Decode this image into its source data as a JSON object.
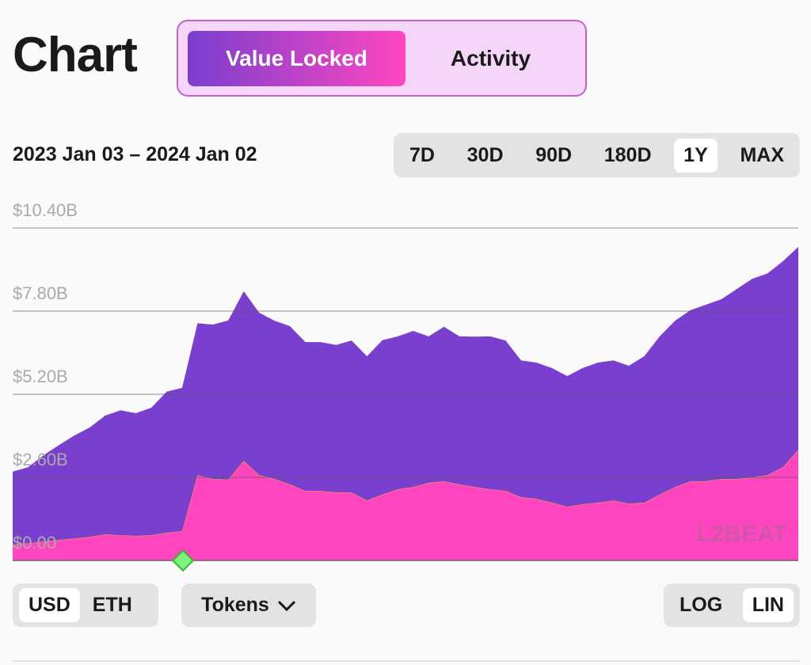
{
  "header": {
    "title": "Chart"
  },
  "tabs": {
    "options": [
      "Value Locked",
      "Activity"
    ],
    "active": "Value Locked"
  },
  "date_range": "2023 Jan 03 – 2024 Jan 02",
  "ranges": {
    "options": [
      "7D",
      "30D",
      "90D",
      "180D",
      "1Y",
      "MAX"
    ],
    "active": "1Y"
  },
  "chart_data": {
    "type": "area",
    "stacked": true,
    "grid": true,
    "watermark": "L2BEAT",
    "ylim": [
      0,
      10.4
    ],
    "yticks": [
      {
        "value": 0,
        "label": "$0.00"
      },
      {
        "value": 2.6,
        "label": "$2.60B"
      },
      {
        "value": 5.2,
        "label": "$5.20B"
      },
      {
        "value": 7.8,
        "label": "$7.80B"
      },
      {
        "value": 10.4,
        "label": "$10.40B"
      }
    ],
    "series": [
      {
        "color": "#ff46c0",
        "values": [
          0.5,
          0.54,
          0.59,
          0.64,
          0.69,
          0.74,
          0.82,
          0.79,
          0.77,
          0.79,
          0.87,
          0.92,
          2.67,
          2.55,
          2.53,
          3.12,
          2.67,
          2.55,
          2.38,
          2.18,
          2.18,
          2.13,
          2.13,
          1.88,
          2.06,
          2.23,
          2.3,
          2.43,
          2.48,
          2.38,
          2.3,
          2.23,
          2.18,
          1.98,
          1.93,
          1.81,
          1.68,
          1.76,
          1.81,
          1.88,
          1.78,
          1.81,
          2.06,
          2.3,
          2.48,
          2.48,
          2.55,
          2.55,
          2.6,
          2.67,
          2.92,
          3.47
        ]
      },
      {
        "color": "#7a3fcf",
        "values": [
          2.28,
          2.38,
          2.7,
          2.97,
          3.22,
          3.42,
          3.71,
          3.91,
          3.84,
          3.99,
          4.41,
          4.48,
          4.75,
          4.83,
          4.98,
          5.3,
          5.08,
          4.95,
          4.95,
          4.65,
          4.65,
          4.61,
          4.75,
          4.51,
          4.83,
          4.78,
          4.88,
          4.58,
          4.83,
          4.63,
          4.7,
          4.78,
          4.7,
          4.28,
          4.26,
          4.21,
          4.09,
          4.26,
          4.38,
          4.38,
          4.31,
          4.58,
          4.95,
          5.2,
          5.35,
          5.52,
          5.62,
          5.94,
          6.21,
          6.31,
          6.44,
          6.34
        ]
      }
    ]
  },
  "currency": {
    "options": [
      "USD",
      "ETH"
    ],
    "active": "USD"
  },
  "tokens": "Tokens",
  "scale": {
    "options": [
      "LOG",
      "LIN"
    ],
    "active": "LIN"
  }
}
